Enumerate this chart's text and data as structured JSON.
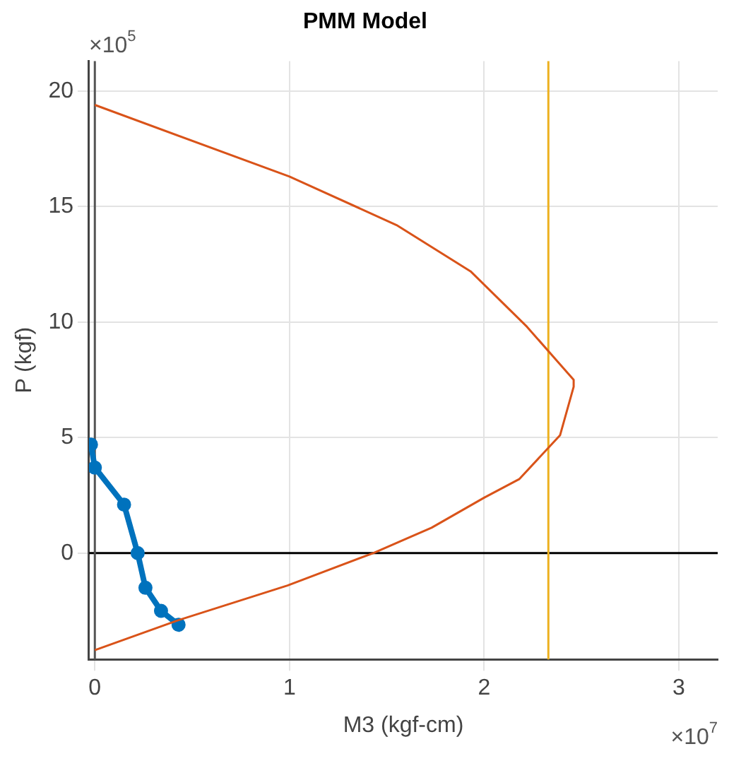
{
  "chart_data": {
    "type": "line",
    "title": "PMM Model",
    "xlabel": "M3 (kgf-cm)",
    "ylabel": "P (kgf)",
    "annotations": [
      "×10$^{5}$",
      "×10$^{7}$"
    ],
    "xlim": [
      -0.03,
      3.2
    ],
    "ylim": [
      -4.6,
      21.3
    ],
    "xticks": [
      0,
      1,
      2,
      3
    ],
    "yticks": [
      0,
      5,
      10,
      15,
      20
    ],
    "grid": true,
    "legend": false,
    "series": [
      {
        "color": "#d95319",
        "marker": "none",
        "x": [
          0,
          1.0,
          1.55,
          1.93,
          2.22,
          2.46,
          2.46,
          2.39,
          2.18,
          2.0,
          1.73,
          1.43,
          0.99,
          0.43,
          0
        ],
        "values": [
          19.4,
          16.3,
          14.2,
          12.2,
          9.8,
          7.5,
          7.2,
          5.1,
          3.2,
          2.4,
          1.1,
          0,
          -1.4,
          -2.9,
          -4.2
        ]
      },
      {
        "color": "#0072bd",
        "marker": "circle",
        "x": [
          -0.02,
          0,
          0.15,
          0.22,
          0.26,
          0.34,
          0.43
        ],
        "values": [
          4.7,
          3.7,
          2.1,
          0,
          -1.5,
          -2.5,
          -3.1
        ]
      }
    ],
    "ref_lines": [
      {
        "axis": "y",
        "value": 0,
        "color": "#000000"
      },
      {
        "axis": "x",
        "value": 2.33,
        "color": "#edb120"
      },
      {
        "axis": "x",
        "value": 0,
        "color": "#555555"
      }
    ]
  }
}
